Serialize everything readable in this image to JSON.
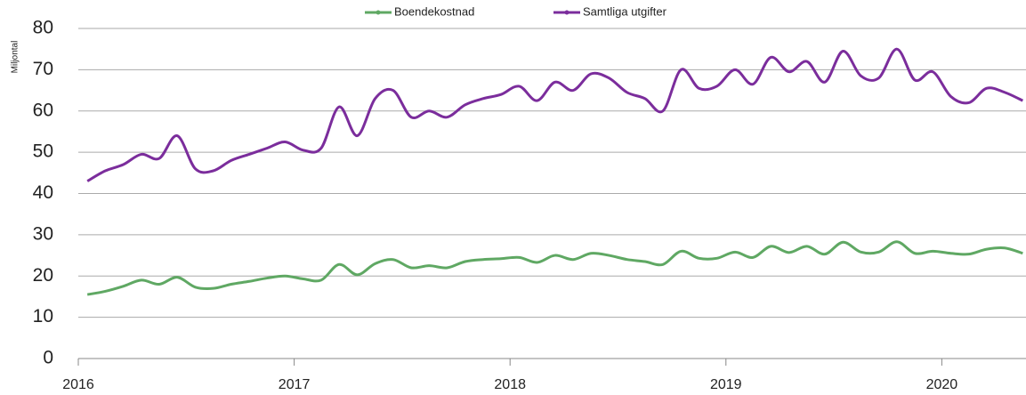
{
  "chart_data": {
    "type": "line",
    "y_label": "Miljontal",
    "x": [
      2016.042,
      2016.125,
      2016.208,
      2016.292,
      2016.375,
      2016.458,
      2016.542,
      2016.625,
      2016.708,
      2016.792,
      2016.875,
      2016.958,
      2017.042,
      2017.125,
      2017.208,
      2017.292,
      2017.375,
      2017.458,
      2017.542,
      2017.625,
      2017.708,
      2017.792,
      2017.875,
      2017.958,
      2018.042,
      2018.125,
      2018.208,
      2018.292,
      2018.375,
      2018.458,
      2018.542,
      2018.625,
      2018.708,
      2018.792,
      2018.875,
      2018.958,
      2019.042,
      2019.125,
      2019.208,
      2019.292,
      2019.375,
      2019.458,
      2019.542,
      2019.625,
      2019.708,
      2019.792,
      2019.875,
      2019.958,
      2020.042,
      2020.125,
      2020.208,
      2020.292,
      2020.375
    ],
    "series": [
      {
        "name": "Boendekostnad",
        "color": "#5fa863",
        "values": [
          15.5,
          16.3,
          17.5,
          19,
          18,
          19.7,
          17.3,
          17,
          18,
          18.7,
          19.5,
          20,
          19.3,
          19,
          22.8,
          20.3,
          23,
          24,
          22,
          22.5,
          22,
          23.5,
          24,
          24.2,
          24.5,
          23.3,
          25,
          24,
          25.5,
          25,
          24,
          23.5,
          22.8,
          26,
          24.3,
          24.3,
          25.8,
          24.5,
          27.2,
          25.7,
          27.2,
          25.3,
          28.2,
          25.8,
          25.8,
          28.3,
          25.5,
          26,
          25.5,
          25.3,
          26.5,
          26.8,
          25.5
        ]
      },
      {
        "name": "Samtliga utgifter",
        "color": "#7b2d9c",
        "values": [
          43,
          45.5,
          47,
          49.5,
          48.5,
          54,
          46,
          45.5,
          48,
          49.5,
          51,
          52.5,
          50.5,
          51,
          61,
          54,
          63,
          65,
          58.5,
          60,
          58.5,
          61.5,
          63,
          64,
          66,
          62.5,
          67,
          65,
          69,
          68,
          64.5,
          63,
          60,
          70,
          65.5,
          66,
          70,
          66.5,
          73,
          69.5,
          72,
          67,
          74.5,
          68.5,
          68,
          75,
          67.5,
          69.5,
          63.5,
          62,
          65.5,
          64.5,
          62.5
        ]
      }
    ],
    "xlim": [
      2016,
      2020.39
    ],
    "xticks": [
      2016,
      2017,
      2018,
      2019,
      2020
    ],
    "ylim": [
      0,
      80
    ],
    "yticks": [
      0,
      10,
      20,
      30,
      40,
      50,
      60,
      70,
      80
    ],
    "grid": true
  }
}
